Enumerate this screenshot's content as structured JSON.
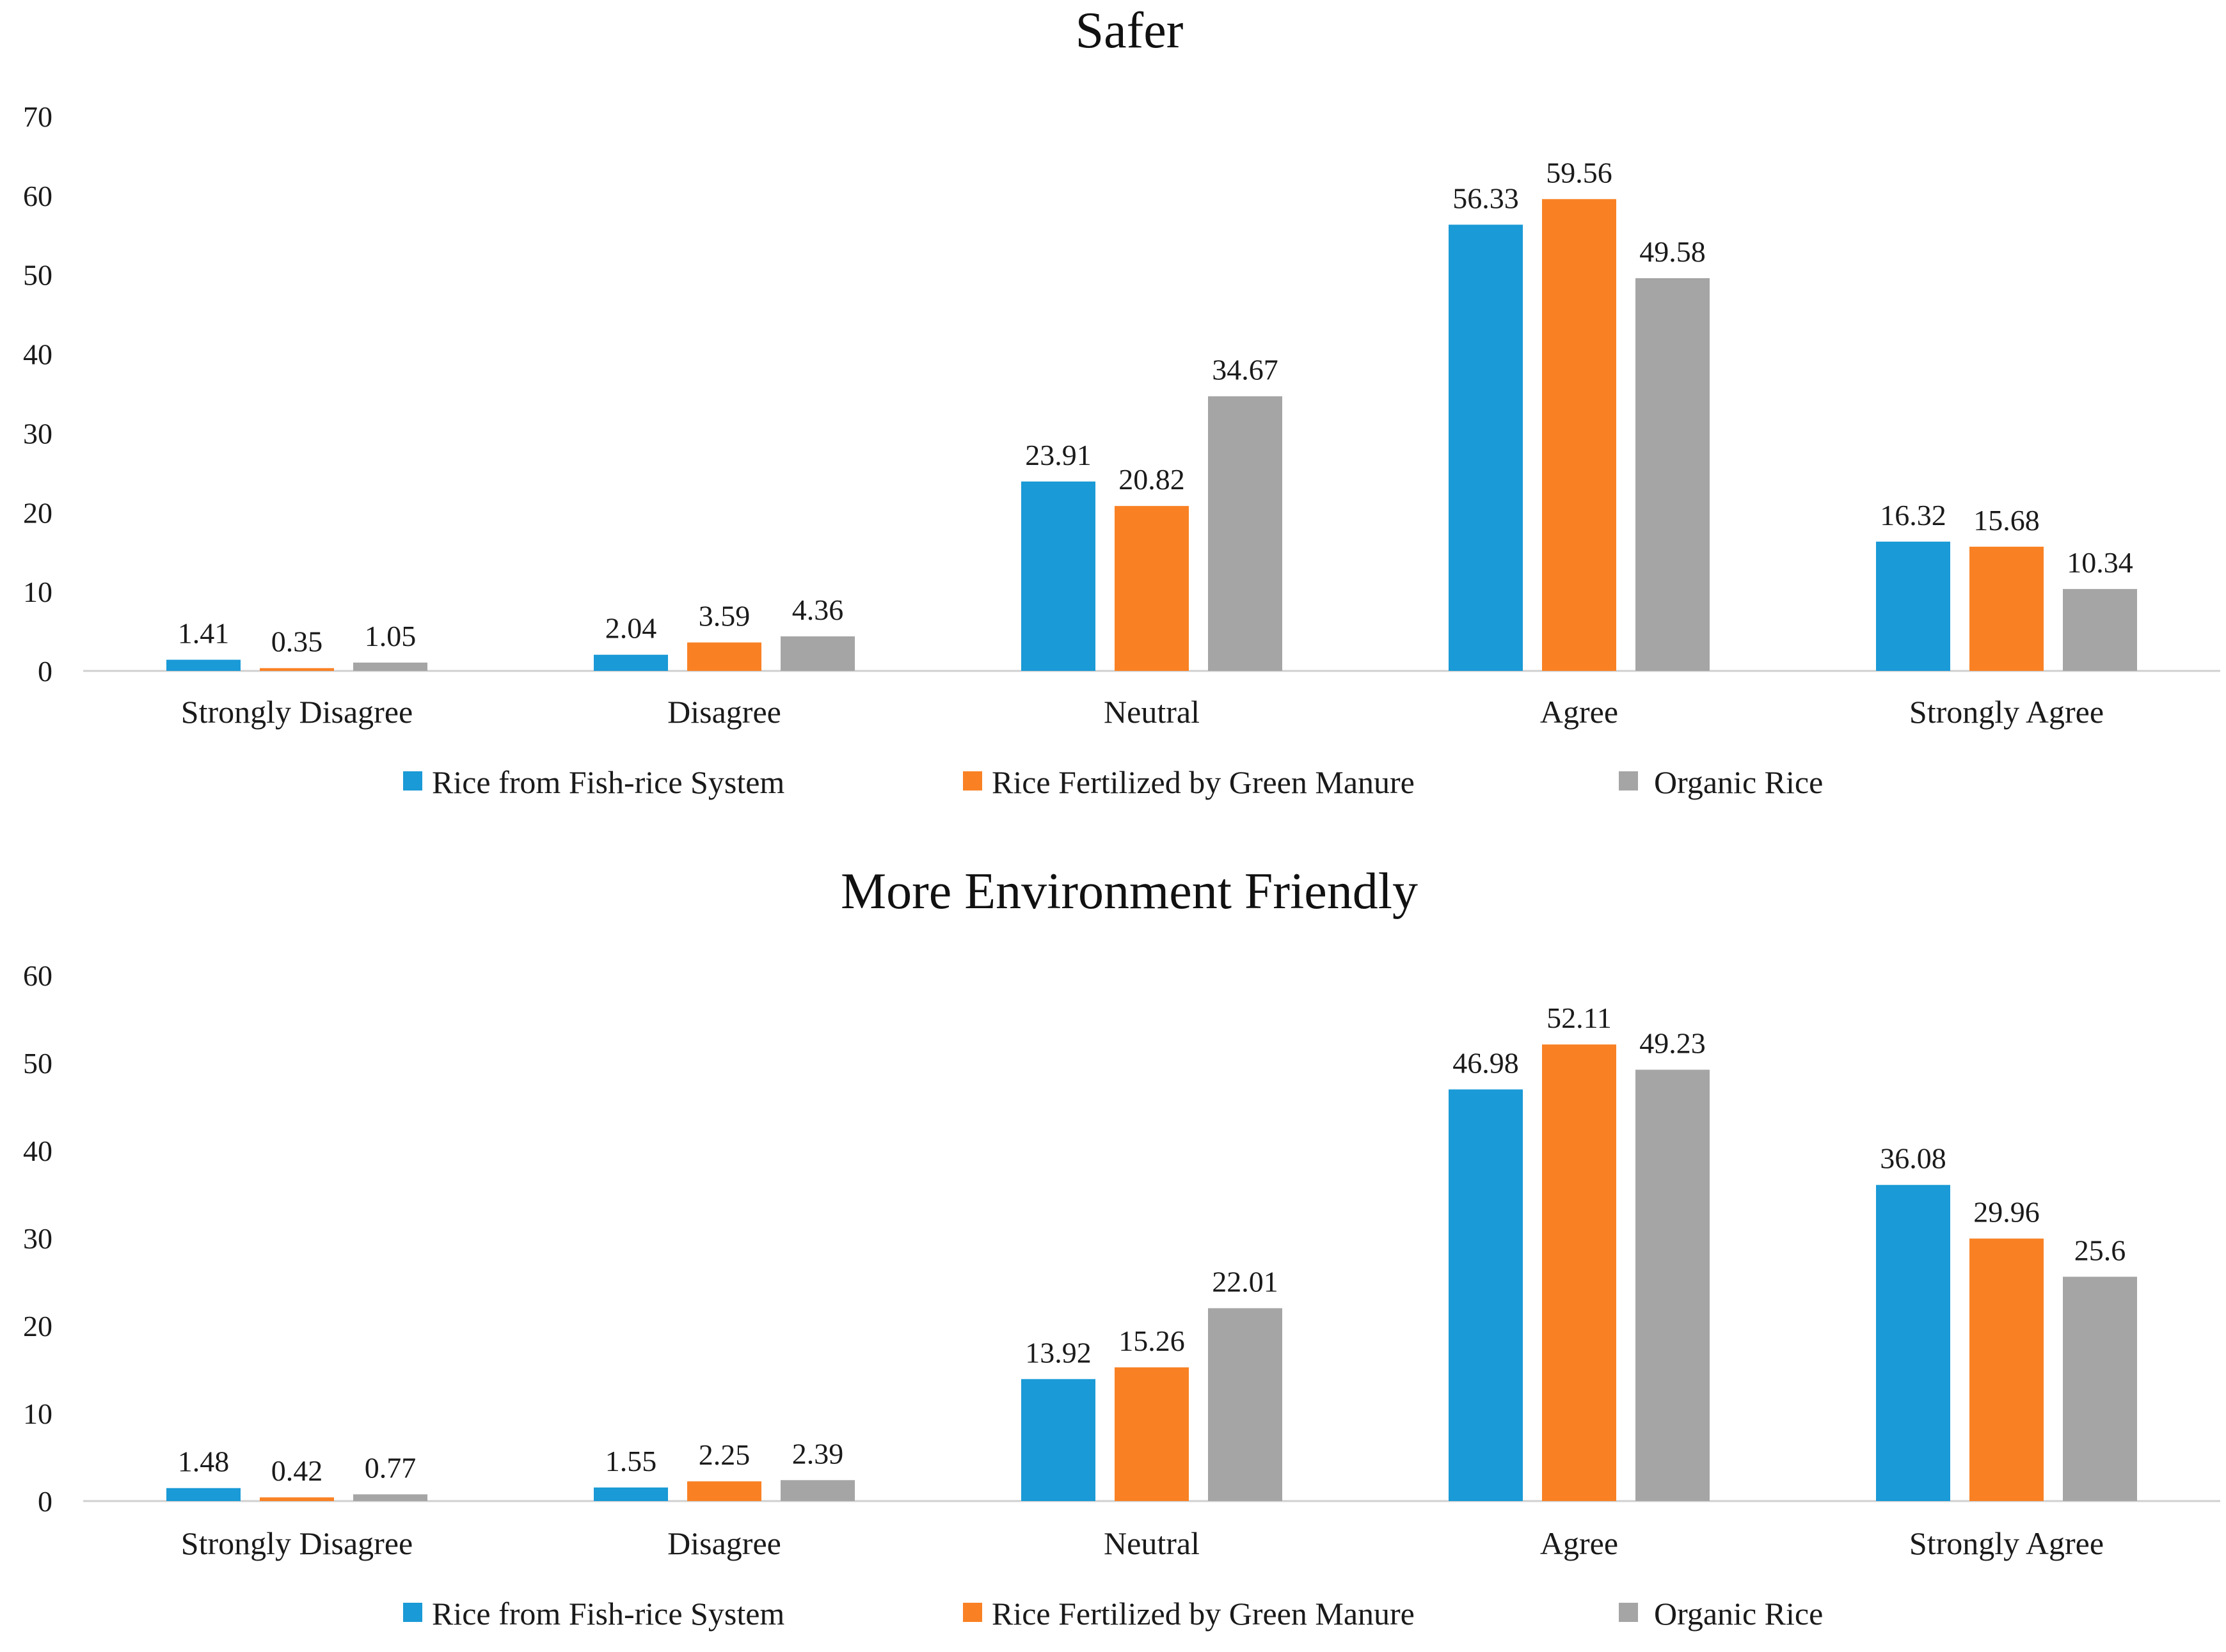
{
  "chart_data": [
    {
      "type": "bar",
      "title": "Safer",
      "categories": [
        "Strongly Disagree",
        "Disagree",
        "Neutral",
        "Agree",
        "Strongly Agree"
      ],
      "ylim": [
        0,
        70
      ],
      "yticks": [
        0,
        10,
        20,
        30,
        40,
        50,
        60,
        70
      ],
      "xlabel": "",
      "ylabel": "",
      "grid": false,
      "legend_position": "bottom",
      "series": [
        {
          "name": "Rice from Fish-rice System",
          "color": "#1a9ad6",
          "values": [
            1.41,
            2.04,
            23.91,
            56.33,
            16.32
          ],
          "labels": [
            "1.41",
            "2.04",
            "23.91",
            "56.33",
            "16.32"
          ]
        },
        {
          "name": "Rice Fertilized by Green Manure",
          "color": "#f98124",
          "values": [
            0.35,
            3.59,
            20.82,
            59.56,
            15.68
          ],
          "labels": [
            "0.35",
            "3.59",
            "20.82",
            "59.56",
            "15.68"
          ]
        },
        {
          "name": "Organic Rice",
          "color": "#a5a5a5",
          "values": [
            1.05,
            4.36,
            34.67,
            49.58,
            10.34
          ],
          "labels": [
            "1.05",
            "4.36",
            "34.67",
            "49.58",
            "10.34"
          ]
        }
      ]
    },
    {
      "type": "bar",
      "title": "More Environment Friendly",
      "categories": [
        "Strongly Disagree",
        "Disagree",
        "Neutral",
        "Agree",
        "Strongly Agree"
      ],
      "ylim": [
        0,
        60
      ],
      "yticks": [
        0,
        10,
        20,
        30,
        40,
        50,
        60
      ],
      "xlabel": "",
      "ylabel": "",
      "grid": false,
      "legend_position": "bottom",
      "series": [
        {
          "name": "Rice from Fish-rice System",
          "color": "#1a9ad6",
          "values": [
            1.48,
            1.55,
            13.92,
            46.98,
            36.08
          ],
          "labels": [
            "1.48",
            "1.55",
            "13.92",
            "46.98",
            "36.08"
          ]
        },
        {
          "name": "Rice Fertilized by Green Manure",
          "color": "#f98124",
          "values": [
            0.42,
            2.25,
            15.26,
            52.11,
            29.96
          ],
          "labels": [
            "0.42",
            "2.25",
            "15.26",
            "52.11",
            "29.96"
          ]
        },
        {
          "name": "Organic Rice",
          "color": "#a5a5a5",
          "values": [
            0.77,
            2.39,
            22.01,
            49.23,
            25.6
          ],
          "labels": [
            "0.77",
            "2.39",
            "22.01",
            "49.23",
            "25.6"
          ]
        }
      ]
    }
  ]
}
